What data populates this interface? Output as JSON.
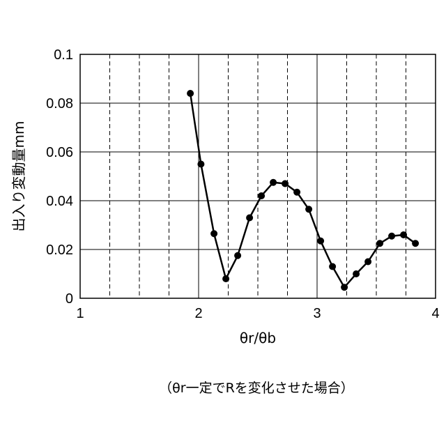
{
  "chart_data": {
    "type": "line",
    "xlabel": "θr/θb",
    "ylabel": "出入り変動量mm",
    "caption": "（θr一定でRを変化させた場合）",
    "xlim": [
      1,
      4
    ],
    "ylim": [
      0,
      0.1
    ],
    "x_ticks": [
      "1",
      "2",
      "3",
      "4"
    ],
    "y_ticks": [
      "0",
      "0.02",
      "0.04",
      "0.06",
      "0.08",
      "0.1"
    ],
    "grid": true,
    "series": [
      {
        "color": "#000000",
        "marker": "circle",
        "x": [
          1.93,
          2.02,
          2.13,
          2.23,
          2.33,
          2.43,
          2.53,
          2.63,
          2.73,
          2.83,
          2.93,
          3.03,
          3.13,
          3.23,
          3.33,
          3.43,
          3.53,
          3.63,
          3.73,
          3.83
        ],
        "y": [
          0.084,
          0.055,
          0.0265,
          0.008,
          0.0175,
          0.033,
          0.042,
          0.0475,
          0.047,
          0.0435,
          0.0365,
          0.0235,
          0.013,
          0.0045,
          0.01,
          0.015,
          0.0225,
          0.0255,
          0.026,
          0.0225
        ]
      }
    ]
  }
}
